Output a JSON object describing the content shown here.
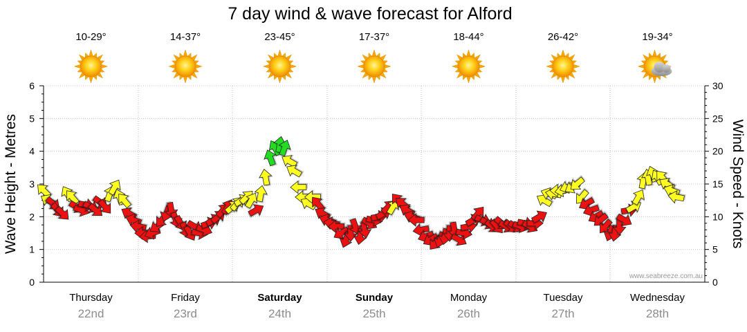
{
  "chart_data": {
    "type": "line",
    "title": "7 day wind & wave forecast for Alford",
    "watermark": "www.seabreeze.com.au",
    "left_axis": {
      "label": "Wave Height - Metres",
      "ticks": [
        "0",
        "1",
        "2",
        "3",
        "4",
        "5",
        "6"
      ],
      "ylim": [
        0,
        6
      ]
    },
    "right_axis": {
      "label": "Wind Speed - Knots",
      "ticks": [
        "0",
        "5",
        "10",
        "15",
        "20",
        "25",
        "30"
      ],
      "ylim": [
        0,
        30
      ]
    },
    "days": [
      {
        "name": "Thursday",
        "date": "22nd",
        "temp": "10-29°",
        "weather": "sunny",
        "bold": false
      },
      {
        "name": "Friday",
        "date": "23rd",
        "temp": "14-37°",
        "weather": "sunny",
        "bold": false
      },
      {
        "name": "Saturday",
        "date": "24th",
        "temp": "23-45°",
        "weather": "sunny",
        "bold": true
      },
      {
        "name": "Sunday",
        "date": "25th",
        "temp": "17-37°",
        "weather": "sunny",
        "bold": true
      },
      {
        "name": "Monday",
        "date": "26th",
        "temp": "18-44°",
        "weather": "sunny",
        "bold": false
      },
      {
        "name": "Tuesday",
        "date": "27th",
        "temp": "26-42°",
        "weather": "sunny",
        "bold": false
      },
      {
        "name": "Wednesday",
        "date": "28th",
        "temp": "19-34°",
        "weather": "partly-cloudy",
        "bold": false
      }
    ],
    "wind_series": {
      "name": "",
      "unit": "knots",
      "x_unit": "day index (0 = start of Thursday 22nd)",
      "colors": {
        "green": "#22dd22",
        "yellow": "#ffff22",
        "red": "#ee1111"
      },
      "points": [
        [
          0.0,
          14.0,
          "yellow",
          315
        ],
        [
          0.05,
          12.5,
          "yellow",
          300
        ],
        [
          0.1,
          12.0,
          "red",
          130
        ],
        [
          0.15,
          11.0,
          "red",
          140
        ],
        [
          0.2,
          10.5,
          "red",
          135
        ],
        [
          0.25,
          13.5,
          "yellow",
          330
        ],
        [
          0.3,
          13.0,
          "yellow",
          320
        ],
        [
          0.35,
          11.5,
          "red",
          120
        ],
        [
          0.4,
          11.0,
          "red",
          110
        ],
        [
          0.45,
          11.8,
          "red",
          100
        ],
        [
          0.5,
          11.5,
          "red",
          115
        ],
        [
          0.55,
          11.0,
          "red",
          130
        ],
        [
          0.6,
          12.2,
          "red",
          125
        ],
        [
          0.65,
          11.5,
          "red",
          140
        ],
        [
          0.7,
          13.5,
          "yellow",
          20
        ],
        [
          0.75,
          14.5,
          "yellow",
          30
        ],
        [
          0.8,
          13.0,
          "yellow",
          340
        ],
        [
          0.85,
          12.5,
          "yellow",
          320
        ],
        [
          0.9,
          10.5,
          "red",
          300
        ],
        [
          0.95,
          9.5,
          "red",
          290
        ],
        [
          1.0,
          8.5,
          "red",
          280
        ],
        [
          1.05,
          7.5,
          "red",
          270
        ],
        [
          1.1,
          7.0,
          "red",
          265
        ],
        [
          1.15,
          7.5,
          "red",
          250
        ],
        [
          1.2,
          8.5,
          "red",
          235
        ],
        [
          1.25,
          9.5,
          "red",
          220
        ],
        [
          1.3,
          10.5,
          "red",
          200
        ],
        [
          1.35,
          11.0,
          "red",
          170
        ],
        [
          1.4,
          9.5,
          "red",
          160
        ],
        [
          1.45,
          9.0,
          "red",
          150
        ],
        [
          1.5,
          8.0,
          "red",
          160
        ],
        [
          1.55,
          7.5,
          "red",
          150
        ],
        [
          1.6,
          8.5,
          "red",
          120
        ],
        [
          1.65,
          7.5,
          "red",
          100
        ],
        [
          1.7,
          8.0,
          "red",
          110
        ],
        [
          1.75,
          9.0,
          "red",
          70
        ],
        [
          1.8,
          9.5,
          "red",
          60
        ],
        [
          1.85,
          10.0,
          "red",
          50
        ],
        [
          1.9,
          11.0,
          "red",
          40
        ],
        [
          1.95,
          11.5,
          "red",
          30
        ],
        [
          2.0,
          11.5,
          "yellow",
          50
        ],
        [
          2.05,
          12.0,
          "yellow",
          40
        ],
        [
          2.1,
          12.5,
          "yellow",
          60
        ],
        [
          2.15,
          13.0,
          "yellow",
          45
        ],
        [
          2.2,
          12.5,
          "yellow",
          30
        ],
        [
          2.25,
          11.0,
          "red",
          60
        ],
        [
          2.3,
          13.5,
          "yellow",
          10
        ],
        [
          2.35,
          16.0,
          "yellow",
          350
        ],
        [
          2.4,
          19.0,
          "green",
          340
        ],
        [
          2.45,
          20.5,
          "green",
          330
        ],
        [
          2.5,
          21.0,
          "green",
          10
        ],
        [
          2.55,
          20.5,
          "green",
          20
        ],
        [
          2.6,
          18.5,
          "yellow",
          300
        ],
        [
          2.65,
          17.0,
          "yellow",
          300
        ],
        [
          2.7,
          14.5,
          "yellow",
          270
        ],
        [
          2.75,
          13.0,
          "yellow",
          270
        ],
        [
          2.8,
          12.0,
          "yellow",
          300
        ],
        [
          2.85,
          13.0,
          "yellow",
          270
        ],
        [
          2.9,
          12.0,
          "red",
          320
        ],
        [
          2.95,
          10.5,
          "red",
          300
        ],
        [
          3.0,
          9.5,
          "red",
          290
        ],
        [
          3.05,
          9.0,
          "red",
          280
        ],
        [
          3.1,
          8.5,
          "red",
          270
        ],
        [
          3.15,
          7.5,
          "red",
          240
        ],
        [
          3.2,
          6.5,
          "red",
          200
        ],
        [
          3.25,
          7.5,
          "red",
          180
        ],
        [
          3.3,
          8.5,
          "red",
          160
        ],
        [
          3.35,
          7.0,
          "red",
          190
        ],
        [
          3.4,
          8.0,
          "red",
          170
        ],
        [
          3.45,
          9.0,
          "red",
          120
        ],
        [
          3.5,
          9.5,
          "red",
          100
        ],
        [
          3.55,
          10.0,
          "red",
          80
        ],
        [
          3.6,
          10.5,
          "red",
          60
        ],
        [
          3.65,
          11.5,
          "red",
          45
        ],
        [
          3.7,
          11.5,
          "yellow",
          30
        ],
        [
          3.75,
          12.5,
          "red",
          320
        ],
        [
          3.8,
          12.0,
          "red",
          310
        ],
        [
          3.85,
          11.0,
          "red",
          300
        ],
        [
          3.9,
          10.0,
          "red",
          290
        ],
        [
          3.95,
          9.5,
          "red",
          270
        ],
        [
          4.0,
          8.0,
          "red",
          260
        ],
        [
          4.05,
          7.0,
          "red",
          250
        ],
        [
          4.1,
          6.5,
          "red",
          240
        ],
        [
          4.15,
          6.0,
          "red",
          220
        ],
        [
          4.2,
          6.5,
          "red",
          200
        ],
        [
          4.25,
          7.0,
          "red",
          190
        ],
        [
          4.3,
          7.5,
          "red",
          180
        ],
        [
          4.35,
          8.0,
          "red",
          170
        ],
        [
          4.4,
          6.5,
          "red",
          120
        ],
        [
          4.45,
          7.5,
          "red",
          100
        ],
        [
          4.5,
          8.5,
          "red",
          80
        ],
        [
          4.55,
          9.5,
          "red",
          60
        ],
        [
          4.6,
          10.5,
          "red",
          40
        ],
        [
          4.65,
          9.5,
          "red",
          110
        ],
        [
          4.7,
          9.0,
          "red",
          120
        ],
        [
          4.75,
          8.5,
          "red",
          130
        ],
        [
          4.8,
          8.5,
          "red",
          140
        ],
        [
          4.85,
          9.0,
          "red",
          130
        ],
        [
          4.9,
          8.5,
          "red",
          120
        ],
        [
          4.95,
          8.5,
          "red",
          130
        ],
        [
          5.0,
          8.5,
          "red",
          120
        ],
        [
          5.05,
          8.5,
          "red",
          110
        ],
        [
          5.1,
          9.0,
          "red",
          100
        ],
        [
          5.15,
          8.5,
          "red",
          120
        ],
        [
          5.2,
          9.0,
          "red",
          90
        ],
        [
          5.25,
          10.0,
          "red",
          60
        ],
        [
          5.3,
          12.5,
          "yellow",
          300
        ],
        [
          5.35,
          13.5,
          "yellow",
          290
        ],
        [
          5.4,
          13.5,
          "yellow",
          280
        ],
        [
          5.45,
          14.0,
          "yellow",
          270
        ],
        [
          5.5,
          14.0,
          "yellow",
          260
        ],
        [
          5.55,
          14.5,
          "yellow",
          250
        ],
        [
          5.6,
          14.5,
          "yellow",
          240
        ],
        [
          5.65,
          15.0,
          "yellow",
          230
        ],
        [
          5.7,
          13.0,
          "yellow",
          220
        ],
        [
          5.75,
          12.0,
          "red",
          240
        ],
        [
          5.8,
          11.0,
          "red",
          250
        ],
        [
          5.85,
          10.0,
          "red",
          240
        ],
        [
          5.9,
          9.5,
          "red",
          230
        ],
        [
          5.95,
          8.5,
          "red",
          220
        ],
        [
          6.0,
          7.5,
          "red",
          200
        ],
        [
          6.05,
          7.5,
          "red",
          190
        ],
        [
          6.1,
          8.5,
          "red",
          180
        ],
        [
          6.15,
          9.5,
          "red",
          120
        ],
        [
          6.2,
          11.0,
          "red",
          80
        ],
        [
          6.25,
          11.5,
          "yellow",
          60
        ],
        [
          6.3,
          13.0,
          "yellow",
          30
        ],
        [
          6.35,
          15.5,
          "yellow",
          10
        ],
        [
          6.4,
          16.0,
          "yellow",
          350
        ],
        [
          6.45,
          16.5,
          "yellow",
          340
        ],
        [
          6.5,
          16.0,
          "yellow",
          330
        ],
        [
          6.55,
          16.0,
          "yellow",
          320
        ],
        [
          6.6,
          15.0,
          "yellow",
          300
        ],
        [
          6.65,
          14.0,
          "yellow",
          290
        ],
        [
          6.7,
          13.0,
          "yellow",
          280
        ]
      ]
    }
  }
}
